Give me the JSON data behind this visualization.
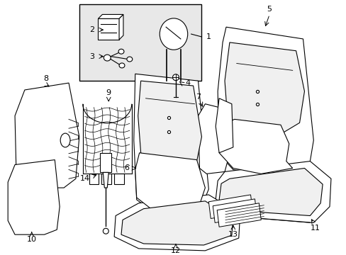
{
  "bg_color": "#ffffff",
  "line_color": "#000000",
  "inset_bg": "#ececec",
  "lw": 0.8
}
